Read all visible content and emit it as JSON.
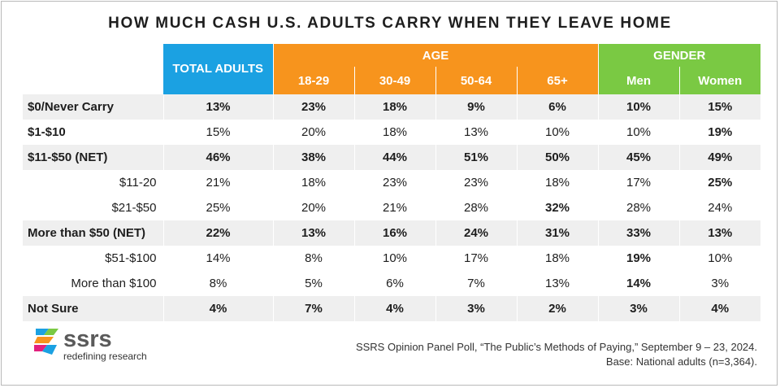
{
  "title": "HOW MUCH CASH U.S. ADULTS CARRY WHEN THEY LEAVE HOME",
  "colors": {
    "total": "#1ba1e2",
    "age": "#f7941d",
    "gender": "#7ac943",
    "shade": "#efefef"
  },
  "chart_data": {
    "type": "table",
    "title": "HOW MUCH CASH U.S. ADULTS CARRY WHEN THEY LEAVE HOME",
    "header_groups": {
      "total": "TOTAL ADULTS",
      "age": "AGE",
      "gender": "GENDER"
    },
    "columns": [
      "TOTAL ADULTS",
      "18-29",
      "30-49",
      "50-64",
      "65+",
      "Men",
      "Women"
    ],
    "rows": [
      {
        "label": "$0/Never Carry",
        "values": [
          "13%",
          "23%",
          "18%",
          "9%",
          "6%",
          "10%",
          "15%"
        ]
      },
      {
        "label": "$1-$10",
        "values": [
          "15%",
          "20%",
          "18%",
          "13%",
          "10%",
          "10%",
          "19%"
        ]
      },
      {
        "label": "$11-$50 (NET)",
        "values": [
          "46%",
          "38%",
          "44%",
          "51%",
          "50%",
          "45%",
          "49%"
        ]
      },
      {
        "label": "$11-20",
        "values": [
          "21%",
          "18%",
          "23%",
          "23%",
          "18%",
          "17%",
          "25%"
        ]
      },
      {
        "label": "$21-$50",
        "values": [
          "25%",
          "20%",
          "21%",
          "28%",
          "32%",
          "28%",
          "24%"
        ]
      },
      {
        "label": "More than $50 (NET)",
        "values": [
          "22%",
          "13%",
          "16%",
          "24%",
          "31%",
          "33%",
          "13%"
        ]
      },
      {
        "label": "$51-$100",
        "values": [
          "14%",
          "8%",
          "10%",
          "17%",
          "18%",
          "19%",
          "10%"
        ]
      },
      {
        "label": "More than $100",
        "values": [
          "8%",
          "5%",
          "6%",
          "7%",
          "13%",
          "14%",
          "3%"
        ]
      },
      {
        "label": "Not Sure",
        "values": [
          "4%",
          "7%",
          "4%",
          "3%",
          "2%",
          "3%",
          "4%"
        ]
      }
    ]
  },
  "logo": {
    "name": "ssrs",
    "tagline": "redefining research"
  },
  "source": {
    "line1": "SSRS Opinion Panel Poll, “The Public’s Methods of Paying,” September 9 – 23, 2024.",
    "line2": "Base: National adults (n=3,364)."
  }
}
